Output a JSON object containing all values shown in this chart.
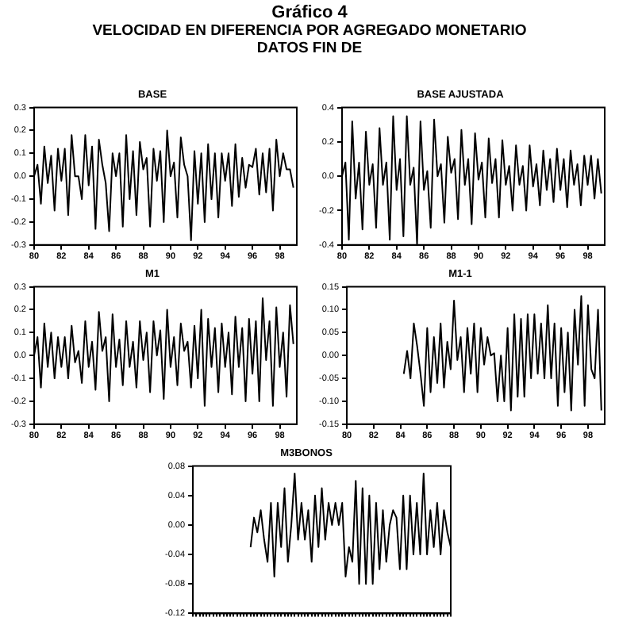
{
  "chart_data": [
    {
      "type": "other",
      "title": "Gráfico 4",
      "subtitle": "VELOCIDAD EN DIFERENCIA POR AGREGADO MONETARIO",
      "annotations": [
        "DATOS FIN DE"
      ]
    },
    {
      "type": "line",
      "title": "BASE",
      "xlim": [
        80,
        99.25
      ],
      "xticks": [
        80,
        82,
        84,
        86,
        88,
        90,
        92,
        94,
        96,
        98
      ],
      "ylim": [
        -0.3,
        0.3
      ],
      "yticks": [
        -0.3,
        -0.2,
        -0.1,
        {
          "value": 0,
          "label": "0.0"
        },
        0.1,
        0.2,
        0.3
      ],
      "grid": false,
      "legend": false,
      "marker": "none",
      "line_style": "solid",
      "series": [
        {
          "color": "#000000",
          "x": [
            80,
            80.25,
            80.5,
            80.75,
            81,
            81.25,
            81.5,
            81.75,
            82,
            82.25,
            82.5,
            82.75,
            83,
            83.25,
            83.5,
            83.75,
            84,
            84.25,
            84.5,
            84.75,
            85,
            85.25,
            85.5,
            85.75,
            86,
            86.25,
            86.5,
            86.75,
            87,
            87.25,
            87.5,
            87.75,
            88,
            88.25,
            88.5,
            88.75,
            89,
            89.25,
            89.5,
            89.75,
            90,
            90.25,
            90.5,
            90.75,
            91,
            91.25,
            91.5,
            91.75,
            92,
            92.25,
            92.5,
            92.75,
            93,
            93.25,
            93.5,
            93.75,
            94,
            94.25,
            94.5,
            94.75,
            95,
            95.25,
            95.5,
            95.75,
            96,
            96.25,
            96.5,
            96.75,
            97,
            97.25,
            97.5,
            97.75,
            98,
            98.25,
            98.5,
            98.75,
            99
          ],
          "values": [
            0,
            0.05,
            -0.12,
            0.13,
            -0.03,
            0.09,
            -0.15,
            0.12,
            -0.02,
            0.12,
            -0.17,
            0.18,
            0,
            0,
            -0.1,
            0.18,
            -0.04,
            0.13,
            -0.23,
            0.16,
            0.05,
            -0.03,
            -0.24,
            0.1,
            0,
            0.1,
            -0.22,
            0.18,
            -0.1,
            0.11,
            -0.17,
            0.15,
            0.03,
            0.08,
            -0.22,
            0.12,
            -0.02,
            0.11,
            -0.2,
            0.2,
            0,
            0.06,
            -0.18,
            0.17,
            0.05,
            0,
            -0.28,
            0.11,
            -0.12,
            0.1,
            -0.2,
            0.14,
            -0.1,
            0.1,
            -0.18,
            0.1,
            -0.02,
            0.1,
            -0.13,
            0.14,
            -0.09,
            0.08,
            -0.05,
            0.05,
            0.04,
            0.12,
            -0.08,
            0.1,
            -0.07,
            0.12,
            -0.15,
            0.16,
            0,
            0.1,
            0.03,
            0.03,
            -0.05
          ]
        }
      ]
    },
    {
      "type": "line",
      "title": "BASE AJUSTADA",
      "xlim": [
        80,
        99.25
      ],
      "xticks": [
        80,
        82,
        84,
        86,
        88,
        90,
        92,
        94,
        96,
        98
      ],
      "ylim": [
        -0.4,
        0.4
      ],
      "yticks": [
        -0.4,
        -0.2,
        {
          "value": 0,
          "label": "0.0"
        },
        0.2,
        0.4
      ],
      "grid": false,
      "legend": false,
      "marker": "none",
      "line_style": "solid",
      "series": [
        {
          "color": "#000000",
          "x": [
            80,
            80.25,
            80.5,
            80.75,
            81,
            81.25,
            81.5,
            81.75,
            82,
            82.25,
            82.5,
            82.75,
            83,
            83.25,
            83.5,
            83.75,
            84,
            84.25,
            84.5,
            84.75,
            85,
            85.25,
            85.5,
            85.75,
            86,
            86.25,
            86.5,
            86.75,
            87,
            87.25,
            87.5,
            87.75,
            88,
            88.25,
            88.5,
            88.75,
            89,
            89.25,
            89.5,
            89.75,
            90,
            90.25,
            90.5,
            90.75,
            91,
            91.25,
            91.5,
            91.75,
            92,
            92.25,
            92.5,
            92.75,
            93,
            93.25,
            93.5,
            93.75,
            94,
            94.25,
            94.5,
            94.75,
            95,
            95.25,
            95.5,
            95.75,
            96,
            96.25,
            96.5,
            96.75,
            97,
            97.25,
            97.5,
            97.75,
            98,
            98.25,
            98.5,
            98.75,
            99
          ],
          "values": [
            0,
            0.08,
            -0.37,
            0.32,
            -0.13,
            0.08,
            -0.31,
            0.26,
            -0.05,
            0.07,
            -0.3,
            0.28,
            -0.05,
            0.08,
            -0.37,
            0.35,
            -0.08,
            0.1,
            -0.35,
            0.35,
            -0.05,
            0.05,
            -0.4,
            0.32,
            -0.08,
            0.03,
            -0.3,
            0.33,
            0,
            0.07,
            -0.27,
            0.23,
            0.02,
            0.1,
            -0.25,
            0.27,
            -0.05,
            0.1,
            -0.28,
            0.25,
            -0.02,
            0.08,
            -0.24,
            0.22,
            -0.04,
            0.1,
            -0.24,
            0.21,
            -0.05,
            0.06,
            -0.2,
            0.18,
            -0.05,
            0.06,
            -0.2,
            0.18,
            -0.06,
            0.07,
            -0.17,
            0.15,
            -0.08,
            0.1,
            -0.15,
            0.16,
            -0.08,
            0.1,
            -0.18,
            0.15,
            -0.05,
            0.07,
            -0.17,
            0.12,
            -0.05,
            0.12,
            -0.13,
            0.1,
            -0.1
          ]
        }
      ]
    },
    {
      "type": "line",
      "title": "M1",
      "xlim": [
        80,
        99.25
      ],
      "xticks": [
        80,
        82,
        84,
        86,
        88,
        90,
        92,
        94,
        96,
        98
      ],
      "ylim": [
        -0.3,
        0.3
      ],
      "yticks": [
        -0.3,
        -0.2,
        -0.1,
        {
          "value": 0,
          "label": "0.0"
        },
        0.1,
        0.2,
        0.3
      ],
      "grid": false,
      "legend": false,
      "marker": "none",
      "line_style": "solid",
      "series": [
        {
          "color": "#000000",
          "x": [
            80,
            80.25,
            80.5,
            80.75,
            81,
            81.25,
            81.5,
            81.75,
            82,
            82.25,
            82.5,
            82.75,
            83,
            83.25,
            83.5,
            83.75,
            84,
            84.25,
            84.5,
            84.75,
            85,
            85.25,
            85.5,
            85.75,
            86,
            86.25,
            86.5,
            86.75,
            87,
            87.25,
            87.5,
            87.75,
            88,
            88.25,
            88.5,
            88.75,
            89,
            89.25,
            89.5,
            89.75,
            90,
            90.25,
            90.5,
            90.75,
            91,
            91.25,
            91.5,
            91.75,
            92,
            92.25,
            92.5,
            92.75,
            93,
            93.25,
            93.5,
            93.75,
            94,
            94.25,
            94.5,
            94.75,
            95,
            95.25,
            95.5,
            95.75,
            96,
            96.25,
            96.5,
            96.75,
            97,
            97.25,
            97.5,
            97.75,
            98,
            98.25,
            98.5,
            98.75,
            99
          ],
          "values": [
            0,
            0.08,
            -0.14,
            0.14,
            -0.05,
            0.1,
            -0.1,
            0.08,
            -0.05,
            0.08,
            -0.1,
            0.13,
            -0.03,
            0.02,
            -0.12,
            0.15,
            -0.05,
            0.06,
            -0.15,
            0.19,
            0.02,
            0.08,
            -0.2,
            0.18,
            -0.05,
            0.07,
            -0.13,
            0.15,
            -0.05,
            0.06,
            -0.14,
            0.15,
            -0.02,
            0.1,
            -0.16,
            0.15,
            0,
            0.11,
            -0.19,
            0.2,
            -0.05,
            0.08,
            -0.13,
            0.14,
            0.02,
            0.06,
            -0.14,
            0.13,
            -0.1,
            0.2,
            -0.22,
            0.16,
            -0.05,
            0.12,
            -0.16,
            0.14,
            -0.05,
            0.1,
            -0.17,
            0.17,
            -0.05,
            0.12,
            -0.2,
            0.16,
            -0.08,
            0.15,
            -0.2,
            0.25,
            -0.02,
            0.15,
            -0.22,
            0.21,
            -0.05,
            0.1,
            -0.18,
            0.22,
            0.05
          ]
        }
      ]
    },
    {
      "type": "line",
      "title": "M1-1",
      "xlim": [
        80,
        99.25
      ],
      "xticks": [
        80,
        82,
        84,
        86,
        88,
        90,
        92,
        94,
        96,
        98
      ],
      "ylim": [
        -0.15,
        0.15
      ],
      "yticks": [
        -0.15,
        {
          "value": -0.1,
          "label": "-0.10"
        },
        -0.05,
        {
          "value": 0,
          "label": "0.00"
        },
        0.05,
        {
          "value": 0.1,
          "label": "0.10"
        },
        0.15
      ],
      "grid": false,
      "legend": false,
      "marker": "none",
      "line_style": "solid",
      "series": [
        {
          "color": "#000000",
          "x": [
            84.25,
            84.5,
            84.75,
            85,
            85.25,
            85.5,
            85.75,
            86,
            86.25,
            86.5,
            86.75,
            87,
            87.25,
            87.5,
            87.75,
            88,
            88.25,
            88.5,
            88.75,
            89,
            89.25,
            89.5,
            89.75,
            90,
            90.25,
            90.5,
            90.75,
            91,
            91.25,
            91.5,
            91.75,
            92,
            92.25,
            92.5,
            92.75,
            93,
            93.25,
            93.5,
            93.75,
            94,
            94.25,
            94.5,
            94.75,
            95,
            95.25,
            95.5,
            95.75,
            96,
            96.25,
            96.5,
            96.75,
            97,
            97.25,
            97.5,
            97.75,
            98,
            98.25,
            98.5,
            98.75,
            99
          ],
          "values": [
            -0.04,
            0.01,
            -0.05,
            0.07,
            0.02,
            -0.04,
            -0.11,
            0.06,
            -0.08,
            0.04,
            -0.06,
            0.07,
            -0.07,
            0.03,
            -0.03,
            0.12,
            -0.01,
            0.04,
            -0.08,
            0.06,
            -0.04,
            0.07,
            -0.08,
            0.06,
            -0.02,
            0.04,
            0,
            0.005,
            -0.1,
            0,
            -0.1,
            0.06,
            -0.12,
            0.09,
            -0.09,
            0.08,
            -0.09,
            0.09,
            -0.05,
            0.09,
            -0.04,
            0.07,
            -0.05,
            0.11,
            -0.05,
            0.07,
            -0.11,
            0.06,
            -0.08,
            0.05,
            -0.12,
            0.1,
            -0.02,
            0.13,
            -0.11,
            0.11,
            -0.03,
            -0.05,
            0.1,
            -0.12
          ]
        }
      ]
    },
    {
      "type": "line",
      "title": "M3BONOS",
      "categories": [
        null,
        null,
        null,
        null,
        null,
        null,
        null,
        null,
        null,
        null,
        null,
        null,
        null,
        null,
        null,
        null,
        null,
        null,
        null,
        null,
        null,
        null,
        null,
        null,
        null,
        null,
        null,
        null,
        null,
        null,
        null,
        null,
        null,
        null,
        null,
        null,
        null,
        null,
        null,
        null,
        null,
        null,
        null,
        null,
        null,
        null,
        null,
        null,
        null,
        null,
        null,
        null,
        null,
        null,
        null,
        null,
        null,
        null,
        null,
        null,
        null,
        null,
        null,
        null,
        null,
        null,
        null,
        null,
        null,
        null,
        null,
        null,
        null,
        null,
        null,
        null,
        null
      ],
      "ylim": [
        -0.12,
        0.08
      ],
      "yticks": [
        {
          "value": -0.12,
          "label": "-0.12"
        },
        {
          "value": -0.08,
          "label": "-0.08"
        },
        {
          "value": -0.04,
          "label": "-0.04"
        },
        {
          "value": 0,
          "label": "0.00"
        },
        {
          "value": 0.04,
          "label": "0.04"
        },
        {
          "value": 0.08,
          "label": "0.08"
        }
      ],
      "tick_labels": "y",
      "grid": false,
      "legend": false,
      "marker": "none",
      "line_style": "solid",
      "series": [
        {
          "color": "#000000",
          "values": [
            null,
            null,
            null,
            null,
            null,
            null,
            null,
            null,
            null,
            null,
            null,
            null,
            null,
            null,
            null,
            null,
            null,
            -0.03,
            0.01,
            -0.01,
            0.02,
            -0.02,
            -0.05,
            0.03,
            -0.07,
            0.03,
            -0.03,
            0.05,
            -0.05,
            0,
            0.07,
            -0.02,
            0.03,
            -0.02,
            0.02,
            -0.05,
            0.04,
            -0.03,
            0.05,
            -0.02,
            0.03,
            0,
            0.03,
            0,
            0.03,
            -0.07,
            -0.03,
            -0.05,
            0.06,
            -0.08,
            0.05,
            -0.08,
            0.04,
            -0.08,
            0.03,
            -0.06,
            0.02,
            -0.05,
            0,
            0.02,
            0.01,
            -0.06,
            0.04,
            -0.06,
            0.04,
            -0.04,
            0.03,
            -0.04,
            0.07,
            -0.04,
            0.02,
            -0.03,
            0.03,
            -0.04,
            0.02,
            -0.01,
            -0.03
          ]
        }
      ]
    }
  ]
}
